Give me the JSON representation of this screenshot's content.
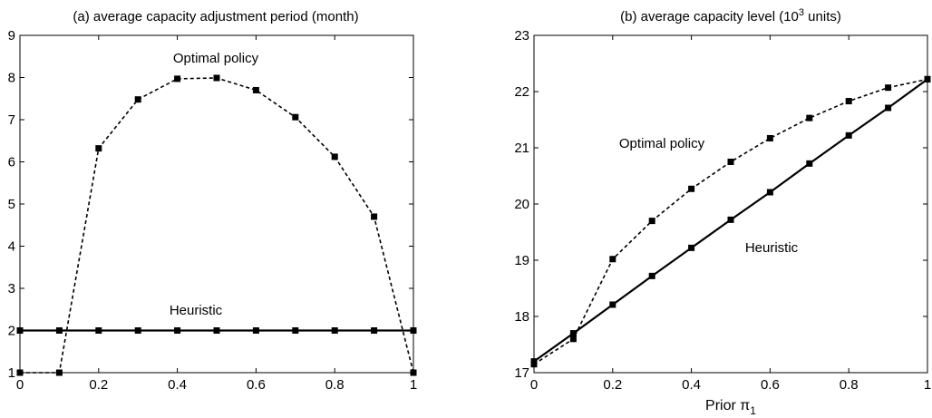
{
  "chart_data": [
    {
      "type": "line",
      "title": "(a) average capacity adjustment period (month)",
      "xlabel": "",
      "ylabel": "",
      "xlim": [
        0,
        1
      ],
      "ylim": [
        1,
        9
      ],
      "xticks": [
        "0",
        "0.2",
        "0.4",
        "0.6",
        "0.8",
        "1"
      ],
      "yticks": [
        "1",
        "2",
        "3",
        "4",
        "5",
        "6",
        "7",
        "8",
        "9"
      ],
      "grid": false,
      "x": [
        0,
        0.1,
        0.2,
        0.3,
        0.4,
        0.5,
        0.6,
        0.7,
        0.8,
        0.9,
        1.0
      ],
      "series": [
        {
          "name": "Optimal policy",
          "style": "dashed",
          "color": "#000000",
          "marker": "square",
          "values": [
            1.0,
            1.0,
            6.32,
            7.48,
            7.97,
            7.99,
            7.7,
            7.06,
            6.12,
            4.7,
            1.0
          ]
        },
        {
          "name": "Heuristic",
          "style": "solid",
          "color": "#000000",
          "marker": "square",
          "values": [
            2,
            2,
            2,
            2,
            2,
            2,
            2,
            2,
            2,
            2,
            2
          ]
        }
      ]
    },
    {
      "type": "line",
      "title": "(b) average capacity level (10",
      "title_sup": "3",
      "title_end": " units)",
      "xlabel": "Prior π",
      "xlabel_sub": "1",
      "ylabel": "",
      "xlim": [
        0,
        1
      ],
      "ylim": [
        17,
        23
      ],
      "xticks": [
        "0",
        "0.2",
        "0.4",
        "0.6",
        "0.8",
        "1"
      ],
      "yticks": [
        "17",
        "18",
        "19",
        "20",
        "21",
        "22",
        "23"
      ],
      "grid": false,
      "x": [
        0,
        0.1,
        0.2,
        0.3,
        0.4,
        0.5,
        0.6,
        0.7,
        0.8,
        0.9,
        1.0
      ],
      "series": [
        {
          "name": "Optimal policy",
          "style": "dashed",
          "color": "#000000",
          "marker": "square",
          "values": [
            17.15,
            17.6,
            19.02,
            19.7,
            20.27,
            20.75,
            21.17,
            21.53,
            21.83,
            22.07,
            22.22
          ]
        },
        {
          "name": "Heuristic",
          "style": "solid",
          "color": "#000000",
          "marker": "square",
          "values": [
            17.2,
            17.7,
            18.21,
            18.72,
            19.22,
            19.72,
            20.21,
            20.72,
            21.22,
            21.71,
            22.22
          ]
        }
      ]
    }
  ]
}
